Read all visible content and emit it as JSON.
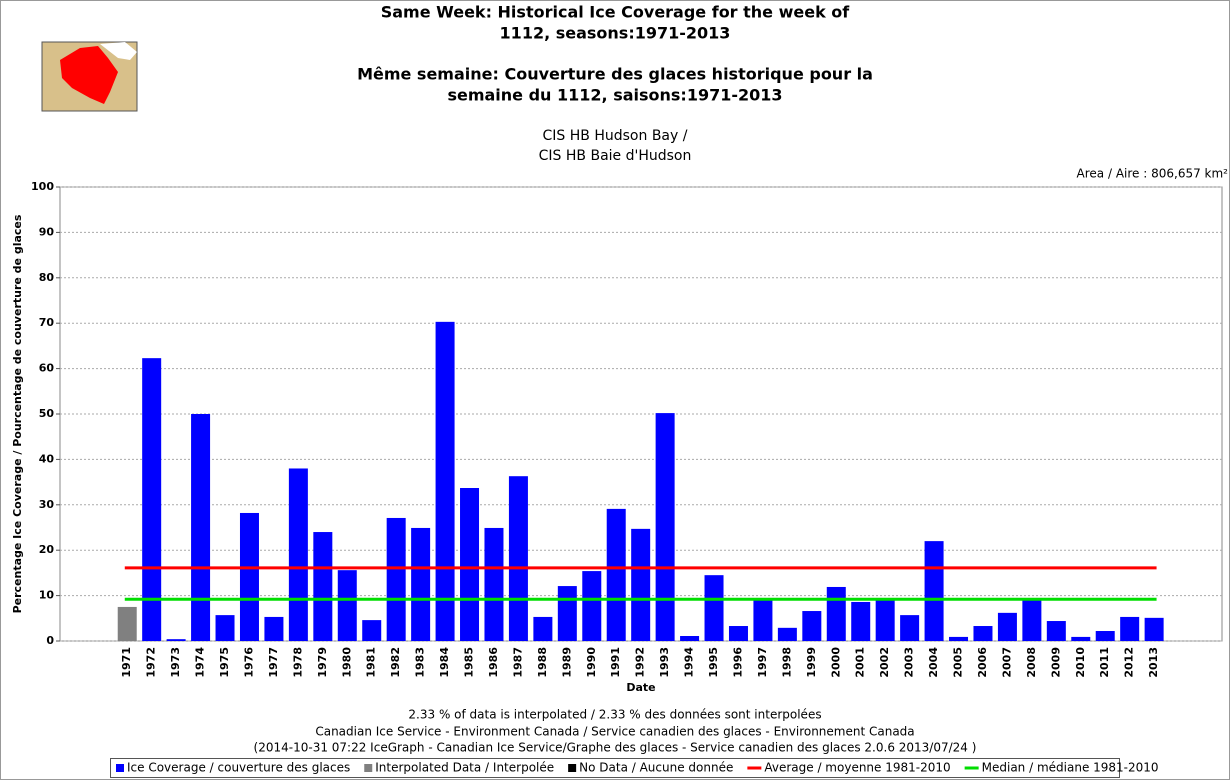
{
  "chart_data": {
    "type": "bar",
    "title": [
      "Same Week: Historical Ice Coverage for the week of",
      "1112, seasons:1971-2013",
      "Même semaine: Couverture des glaces historique pour la",
      "semaine du 1112, saisons:1971-2013"
    ],
    "subtitle": [
      "CIS HB Hudson Bay /",
      "CIS HB Baie d'Hudson"
    ],
    "area_label": "Area / Aire : 806,657 km²",
    "y_label": "Percentage Ice Coverage / Pourcentage de couverture de glaces",
    "x_label": "Date",
    "notes": [
      "2.33 % of data is interpolated / 2.33 % des données sont interpolées",
      "Canadian Ice Service - Environment Canada / Service canadien des glaces - Environnement Canada",
      "(2014-10-31 07:22 IceGraph - Canadian Ice Service/Graphe des glaces - Service canadien des glaces 2.0.6 2013/07/24 )"
    ],
    "categories": [
      "1971",
      "1972",
      "1973",
      "1974",
      "1975",
      "1976",
      "1977",
      "1978",
      "1979",
      "1980",
      "1981",
      "1982",
      "1983",
      "1984",
      "1985",
      "1986",
      "1987",
      "1988",
      "1989",
      "1990",
      "1991",
      "1992",
      "1993",
      "1994",
      "1995",
      "1996",
      "1997",
      "1998",
      "1999",
      "2000",
      "2001",
      "2002",
      "2003",
      "2004",
      "2005",
      "2006",
      "2007",
      "2008",
      "2009",
      "2010",
      "2011",
      "2012",
      "2013"
    ],
    "series": [
      {
        "name": "Ice Coverage / couverture des glaces",
        "color": "#0000ff",
        "values": [
          null,
          62.3,
          0.4,
          50,
          5.7,
          28.2,
          5.3,
          38,
          24,
          15.6,
          4.6,
          27.1,
          24.9,
          70.3,
          33.7,
          24.9,
          36.3,
          5.3,
          12.1,
          15.4,
          29.1,
          24.7,
          50.2,
          1.1,
          14.5,
          3.3,
          9,
          2.9,
          6.6,
          11.9,
          8.6,
          9,
          5.7,
          22,
          0.9,
          3.3,
          6.2,
          9,
          4.4,
          0.9,
          2.2,
          5.3,
          5.1
        ]
      },
      {
        "name": "Interpolated Data / Interpolée",
        "color": "#808080",
        "values": [
          7.5,
          null,
          null,
          null,
          null,
          null,
          null,
          null,
          null,
          null,
          null,
          null,
          null,
          null,
          null,
          null,
          null,
          null,
          null,
          null,
          null,
          null,
          null,
          null,
          null,
          null,
          null,
          null,
          null,
          null,
          null,
          null,
          null,
          null,
          null,
          null,
          null,
          null,
          null,
          null,
          null,
          null,
          null
        ]
      },
      {
        "name": "No Data / Aucune donnée",
        "color": "#000000",
        "values": [
          null,
          null,
          null,
          null,
          null,
          null,
          null,
          null,
          null,
          null,
          null,
          null,
          null,
          null,
          null,
          null,
          null,
          null,
          null,
          null,
          null,
          null,
          null,
          null,
          null,
          null,
          null,
          null,
          null,
          null,
          null,
          null,
          null,
          null,
          null,
          null,
          null,
          null,
          null,
          null,
          null,
          null,
          null
        ]
      }
    ],
    "lines": [
      {
        "name": "Average / moyenne 1981-2010",
        "color": "#ff0000",
        "value": 16.1
      },
      {
        "name": "Median / médiane 1981-2010",
        "color": "#00dd00",
        "value": 9.2
      }
    ],
    "ylim": [
      0,
      100
    ],
    "yticks": [
      0,
      10,
      20,
      30,
      40,
      50,
      60,
      70,
      80,
      90,
      100
    ],
    "grid": true
  }
}
